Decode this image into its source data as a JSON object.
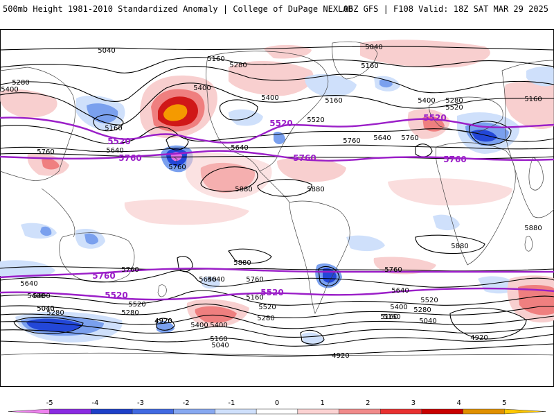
{
  "header": {
    "title": "500mb Height 1981-2010 Standardized Anomaly | College of DuPage NEXLAB",
    "run": "06Z GFS | F108 Valid: 18Z SAT MAR 29 2025"
  },
  "colorbar": {
    "ticks": [
      "-5",
      "-4",
      "-3",
      "-2",
      "-1",
      "0",
      "1",
      "2",
      "3",
      "4",
      "5"
    ],
    "colors": [
      "#ee82ee",
      "#8a2be2",
      "#1e40c8",
      "#4169e1",
      "#87a8f0",
      "#cfe0fb",
      "#ffffff",
      "#fbd2d2",
      "#f08a8a",
      "#e83030",
      "#c80000",
      "#e09000",
      "#ffc800"
    ]
  },
  "colors": {
    "anom_pos_1": "#f8cfcf",
    "anom_pos_2": "#ef7f7f",
    "anom_pos_3": "#d01818",
    "anom_pos_4": "#f59a00",
    "anom_neg_1": "#cfe0fb",
    "anom_neg_2": "#7aa0ee",
    "anom_neg_3": "#2347d8",
    "anom_neg_5": "#e070e8",
    "height_contour": "#000000",
    "key_contour": "#9b1fc8",
    "coast": "#555555"
  },
  "map": {
    "key_contours": [
      {
        "value": "5520",
        "labels": [
          "5520",
          "5520",
          "5520",
          "5520",
          "5520"
        ]
      },
      {
        "value": "5760",
        "labels": [
          "5760",
          "5760",
          "5760",
          "5760"
        ]
      }
    ],
    "contour_labels": [
      "5040",
      "5040",
      "5160",
      "5160",
      "5280",
      "5280",
      "5400",
      "5400",
      "5160",
      "5400",
      "5160",
      "5400",
      "5520",
      "5280",
      "5520",
      "5160",
      "5640",
      "5760",
      "5640",
      "5760",
      "5640",
      "5760",
      "5760",
      "5880",
      "5880",
      "5880",
      "5880",
      "5760",
      "5640",
      "5760",
      "5760",
      "5880",
      "5640",
      "5400",
      "5640",
      "5520",
      "5280",
      "5040",
      "5160",
      "5400",
      "5040",
      "4920",
      "5520",
      "5160",
      "5280",
      "5400",
      "5640",
      "5520",
      "5160",
      "5280",
      "5400",
      "5040",
      "4920",
      "4920",
      "5400",
      "5280",
      "5160",
      "5040",
      "4920"
    ]
  }
}
